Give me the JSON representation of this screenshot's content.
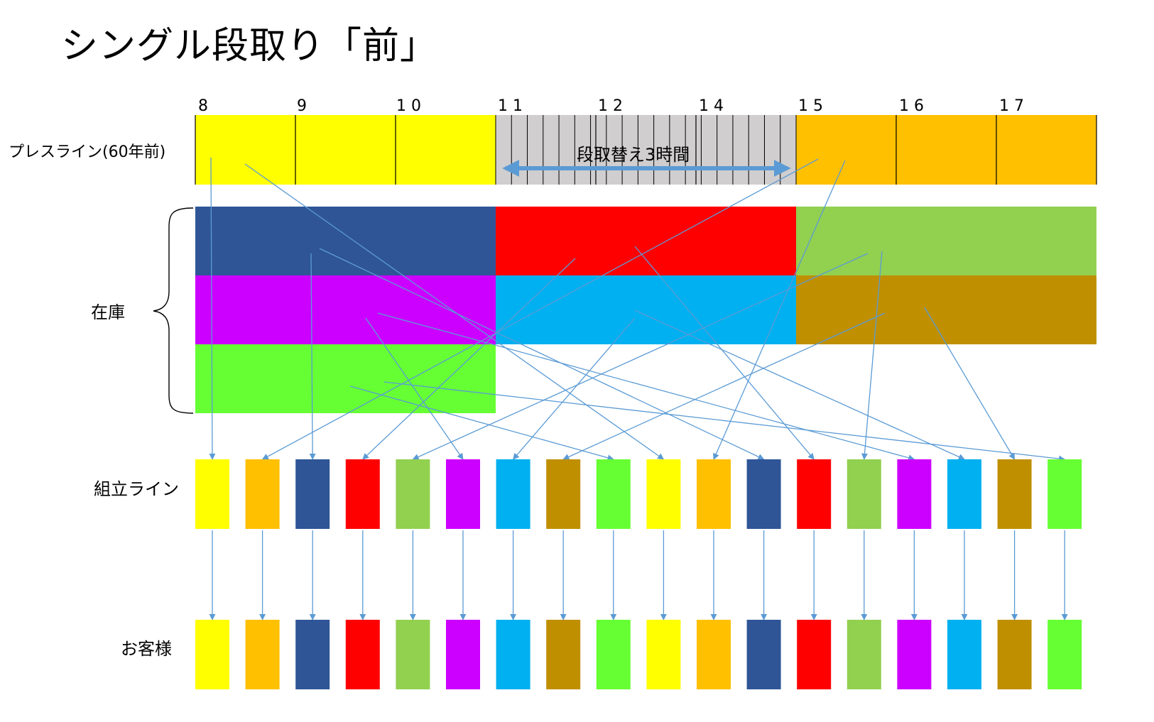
{
  "title": "シングル段取り「前」",
  "hour_labels": [
    "8",
    "9",
    "1 0",
    "1 1",
    "1 2",
    "1 4",
    "1 5",
    "1 6",
    "1 7"
  ],
  "row_labels": {
    "press_line": "プレスライン(60年前)",
    "inventory": "在庫",
    "assembly_line": "組立ライン",
    "customer": "お客様"
  },
  "changeover_label": "段取替え3時間",
  "colors": {
    "yellow": "#FFFF00",
    "orange": "#FFC000",
    "navy": "#2F5597",
    "red": "#FF0000",
    "olive_green": "#92D050",
    "purple": "#CC00FF",
    "sky_blue": "#00B0F0",
    "brown": "#BF8F00",
    "lime": "#66FF33",
    "gray": "#D0CECE",
    "arrow": "#5B9BD5"
  },
  "press_line_segments": [
    {
      "product": "yellow",
      "hours": 3
    },
    {
      "product": "changeover",
      "hours": 3
    },
    {
      "product": "orange",
      "hours": 3
    }
  ],
  "inventory_blocks": [
    {
      "row": 1,
      "col": 1,
      "color": "navy"
    },
    {
      "row": 1,
      "col": 2,
      "color": "red"
    },
    {
      "row": 1,
      "col": 3,
      "color": "olive_green"
    },
    {
      "row": 2,
      "col": 1,
      "color": "purple"
    },
    {
      "row": 2,
      "col": 2,
      "color": "sky_blue"
    },
    {
      "row": 2,
      "col": 3,
      "color": "brown"
    },
    {
      "row": 3,
      "col": 1,
      "color": "lime"
    }
  ],
  "assembly_sequence": [
    "yellow",
    "orange",
    "navy",
    "red",
    "olive_green",
    "purple",
    "sky_blue",
    "brown",
    "lime",
    "yellow",
    "orange",
    "navy",
    "red",
    "olive_green",
    "purple",
    "sky_blue",
    "brown",
    "lime"
  ]
}
